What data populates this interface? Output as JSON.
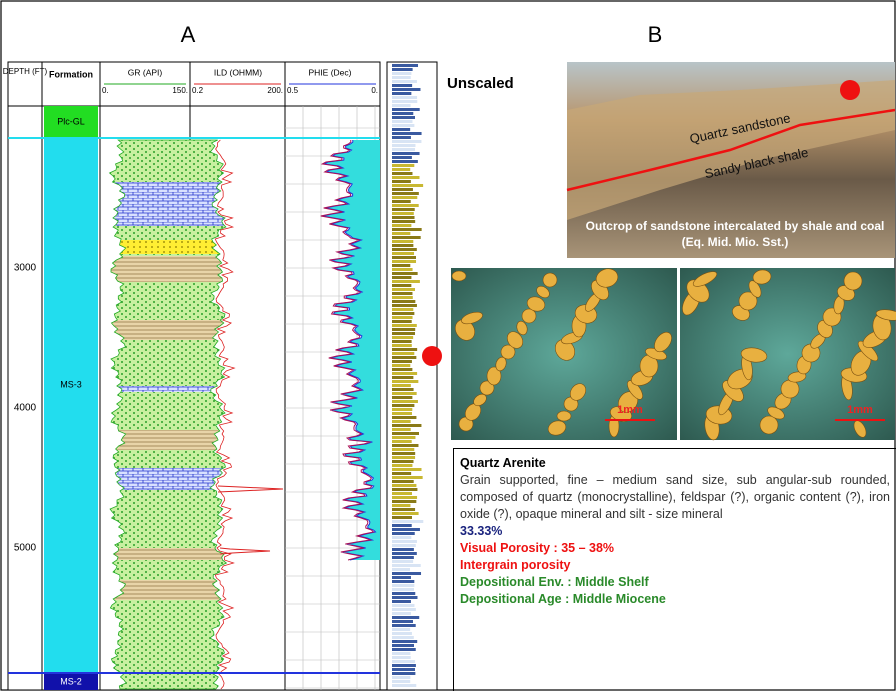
{
  "header": {
    "panel_a": "A",
    "panel_b": "B"
  },
  "log": {
    "depth_header": "DEPTH (FT)",
    "formation_header": "Formation",
    "gr": {
      "name": "GR (API)",
      "min": "0.",
      "max": "150."
    },
    "ild": {
      "name": "ILD (OHMM)",
      "min": "0.2",
      "max": "200."
    },
    "phie": {
      "name": "PHIE (Dec)",
      "min": "0.5",
      "max": "0."
    },
    "depths": [
      "3000",
      "4000",
      "5000"
    ],
    "formations": [
      "Plc-GL",
      "MS-3",
      "MS-2"
    ]
  },
  "scale_note": "Unscaled",
  "outcrop": {
    "label_1": "Quartz sandstone",
    "label_2": "Sandy black shale",
    "caption": "Outcrop of sandstone intercalated by shale and coal (Eq. Mid. Mio. Sst.)"
  },
  "micrographs": {
    "scale_1": "1mm",
    "scale_2": "1mm"
  },
  "description": {
    "title": "Quartz Arenite",
    "text": "Grain supported, fine – medium sand size, sub angular-sub rounded, composed of  quartz (monocrystalline), feldspar (?), organic content (?), iron oxide (?), opaque mineral and silt -  size mineral",
    "porosity_value": "33.33%",
    "visual_porosity": "Visual Porosity : 35 – 38%",
    "porosity_type": "Intergrain porosity",
    "environment": "Depositional Env. : Middle Shelf",
    "age": "Depositional Age : Middle Miocene"
  }
}
